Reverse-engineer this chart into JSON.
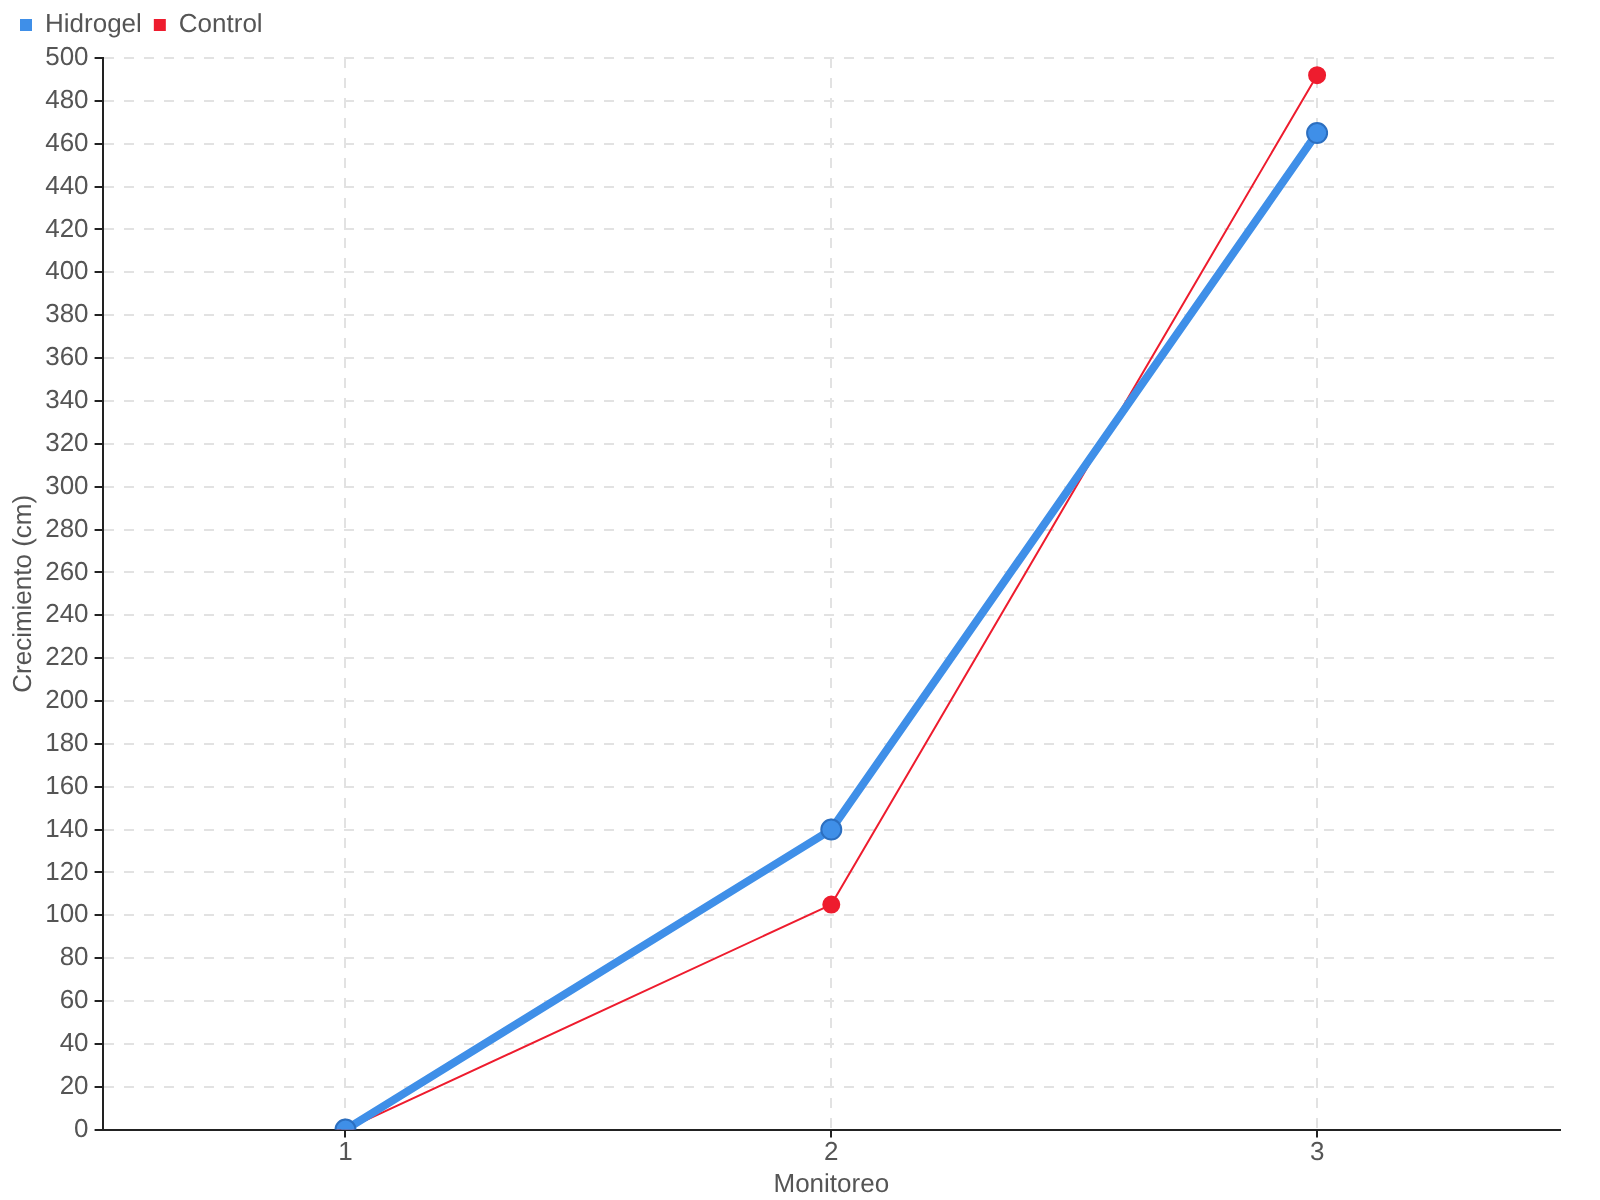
{
  "chart_data": {
    "type": "line",
    "xlabel": "Monitoreo",
    "ylabel": "Crecimiento (cm)",
    "categories": [
      "1",
      "2",
      "3"
    ],
    "series": [
      {
        "name": "Hidrogel",
        "color": "#3f8fe8",
        "values": [
          0,
          140,
          465
        ]
      },
      {
        "name": "Control",
        "color": "#ee1c2e",
        "values": [
          0,
          105,
          492
        ]
      }
    ],
    "ylim": [
      0,
      500
    ],
    "yticks": [
      0,
      20,
      40,
      60,
      80,
      100,
      120,
      140,
      160,
      180,
      200,
      220,
      240,
      260,
      280,
      300,
      320,
      340,
      360,
      380,
      400,
      420,
      440,
      460,
      480,
      500
    ],
    "grid": true,
    "legend": "top left",
    "marker": "circle",
    "line_style": "solid"
  }
}
